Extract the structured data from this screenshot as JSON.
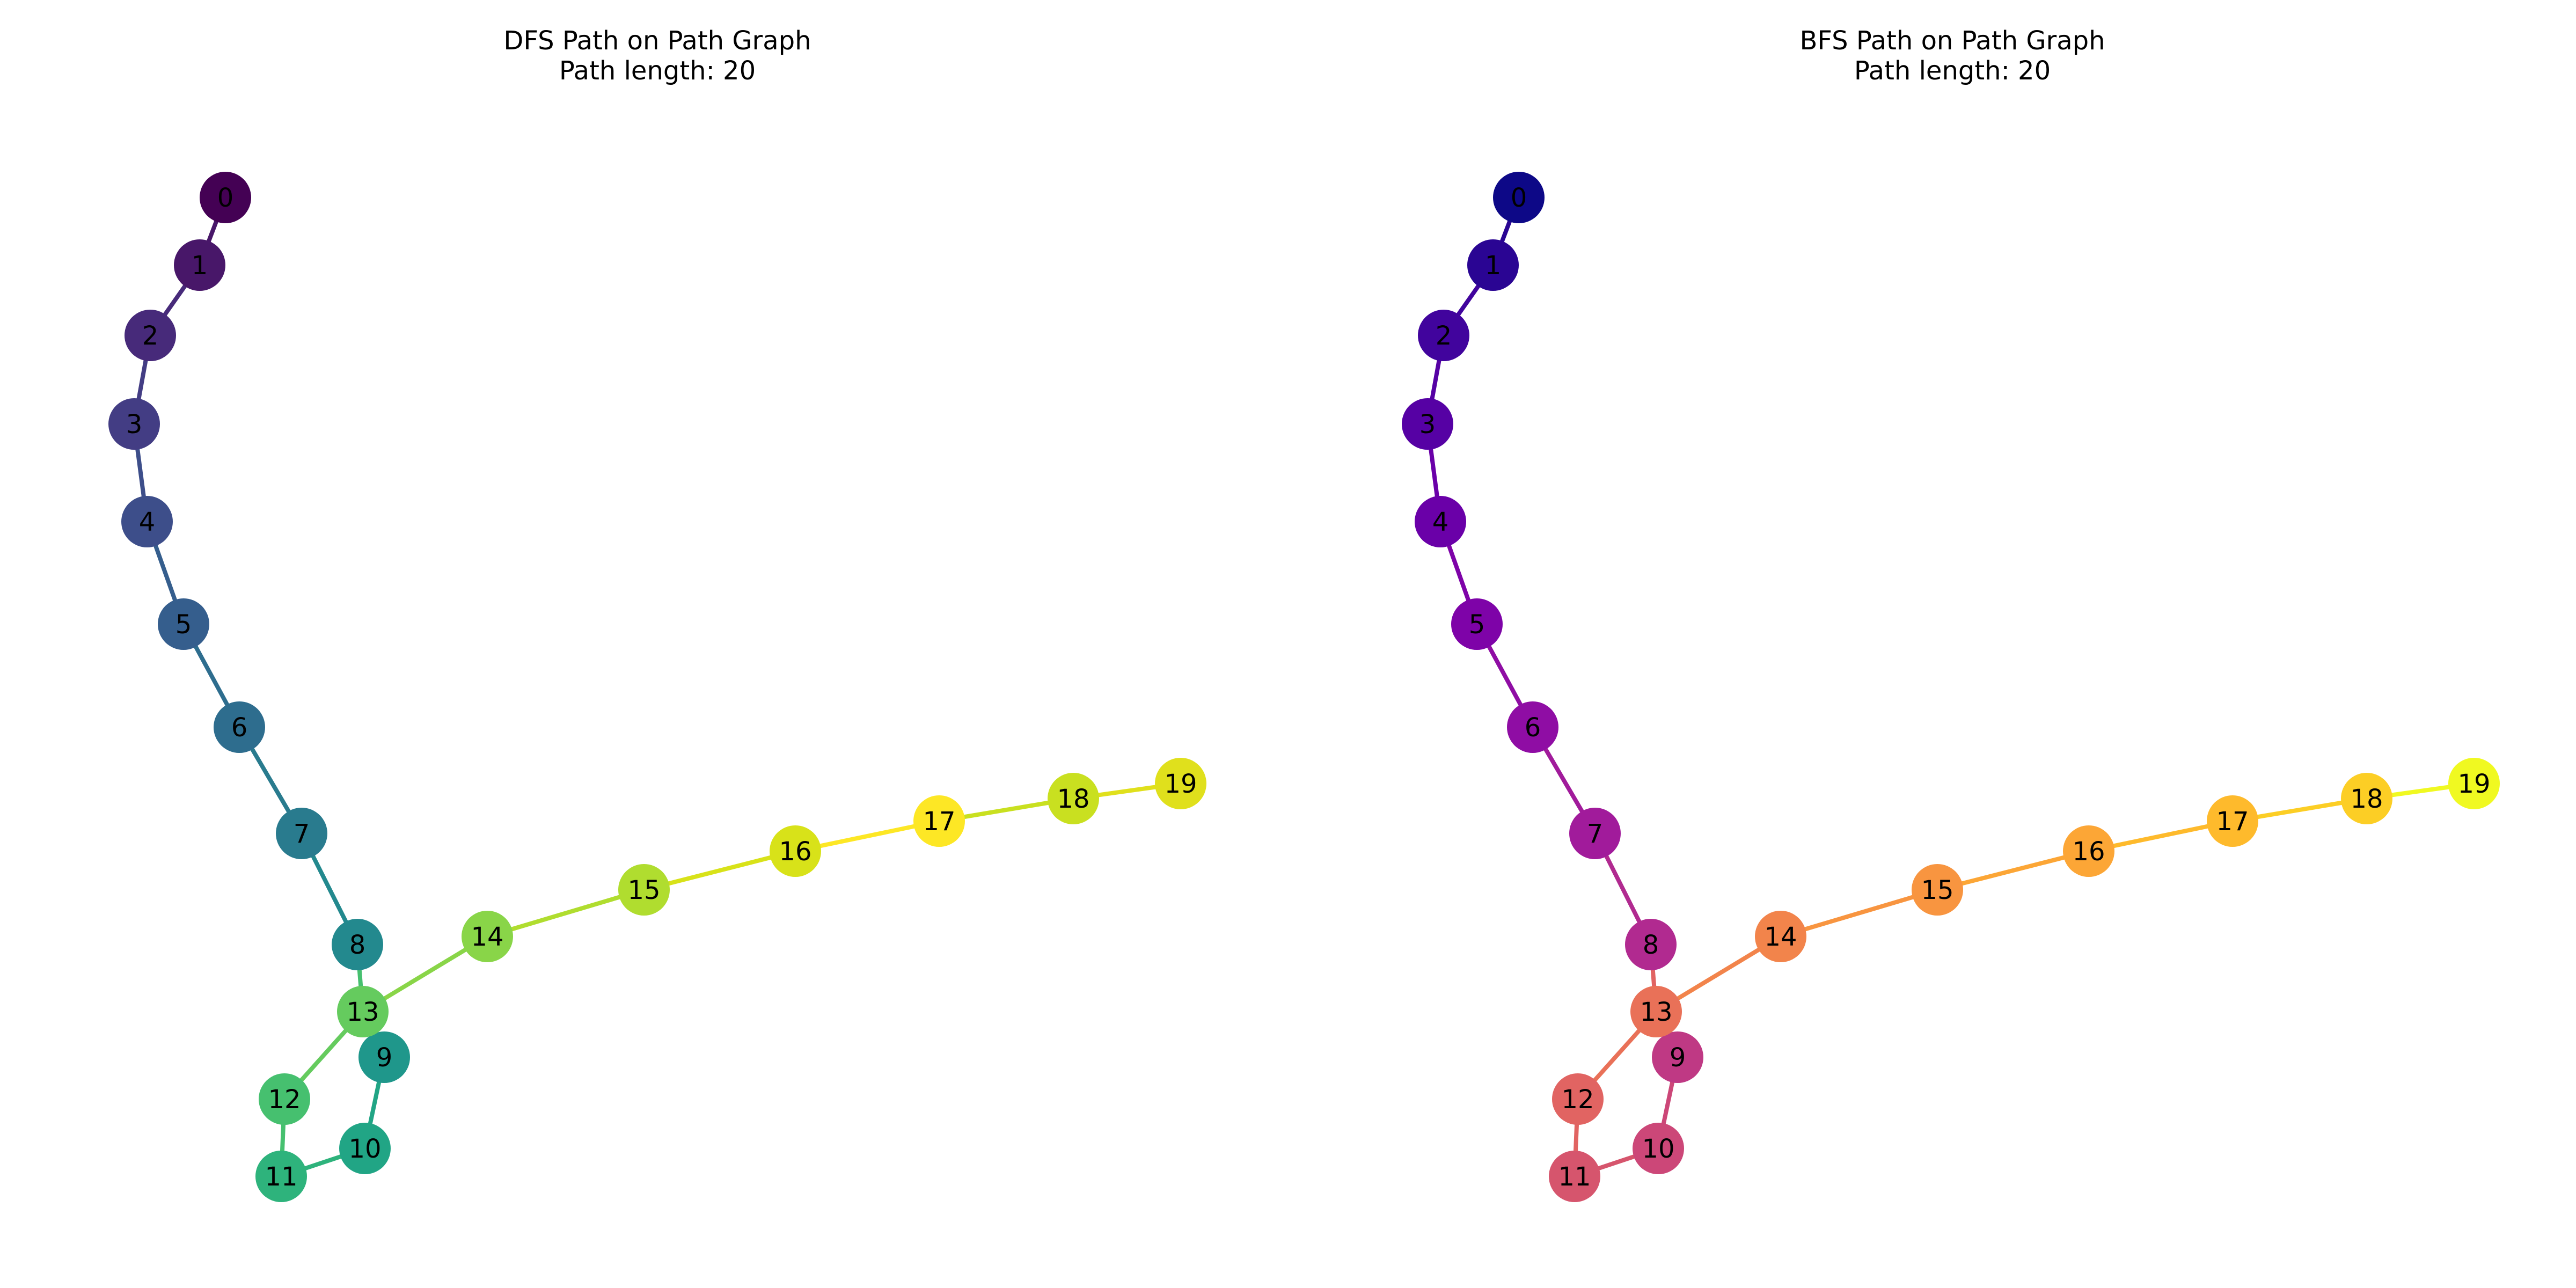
{
  "panels": [
    {
      "title": "DFS Path on Path Graph",
      "subtitle": "Path length: 20",
      "colormap": "viridis",
      "node_colors": [
        "#440154",
        "#481769",
        "#472a7a",
        "#433d84",
        "#3d4e8a",
        "#355e8d",
        "#2e6d8e",
        "#297b8e",
        "#23898e",
        "#1f978b",
        "#21a585",
        "#2eb37c",
        "#46c06f",
        "#65cb5e",
        "#89d548",
        "#b0dd2f",
        "#d8e219",
        "#fde725",
        "#c9e020",
        "#e0e01c"
      ]
    },
    {
      "title": "BFS Path on Path Graph",
      "subtitle": "Path length: 20",
      "colormap": "plasma",
      "node_colors": [
        "#0d0887",
        "#2a0593",
        "#41049d",
        "#5601a4",
        "#6a00a8",
        "#7e03a8",
        "#8f0da4",
        "#a11b9b",
        "#b12a90",
        "#bf3984",
        "#cc4778",
        "#d6556d",
        "#e16462",
        "#e97158",
        "#f2844b",
        "#f89540",
        "#fca636",
        "#feba2c",
        "#fcce25",
        "#f0f921"
      ]
    }
  ],
  "graph": {
    "nodes": [
      "0",
      "1",
      "2",
      "3",
      "4",
      "5",
      "6",
      "7",
      "8",
      "9",
      "10",
      "11",
      "12",
      "13",
      "14",
      "15",
      "16",
      "17",
      "18",
      "19"
    ],
    "edges": [
      [
        0,
        1
      ],
      [
        1,
        2
      ],
      [
        2,
        3
      ],
      [
        3,
        4
      ],
      [
        4,
        5
      ],
      [
        5,
        6
      ],
      [
        6,
        7
      ],
      [
        7,
        8
      ],
      [
        8,
        13
      ],
      [
        13,
        9
      ],
      [
        9,
        10
      ],
      [
        10,
        11
      ],
      [
        11,
        12
      ],
      [
        12,
        13
      ],
      [
        13,
        14
      ],
      [
        14,
        15
      ],
      [
        15,
        16
      ],
      [
        16,
        17
      ],
      [
        17,
        18
      ],
      [
        18,
        19
      ]
    ]
  }
}
